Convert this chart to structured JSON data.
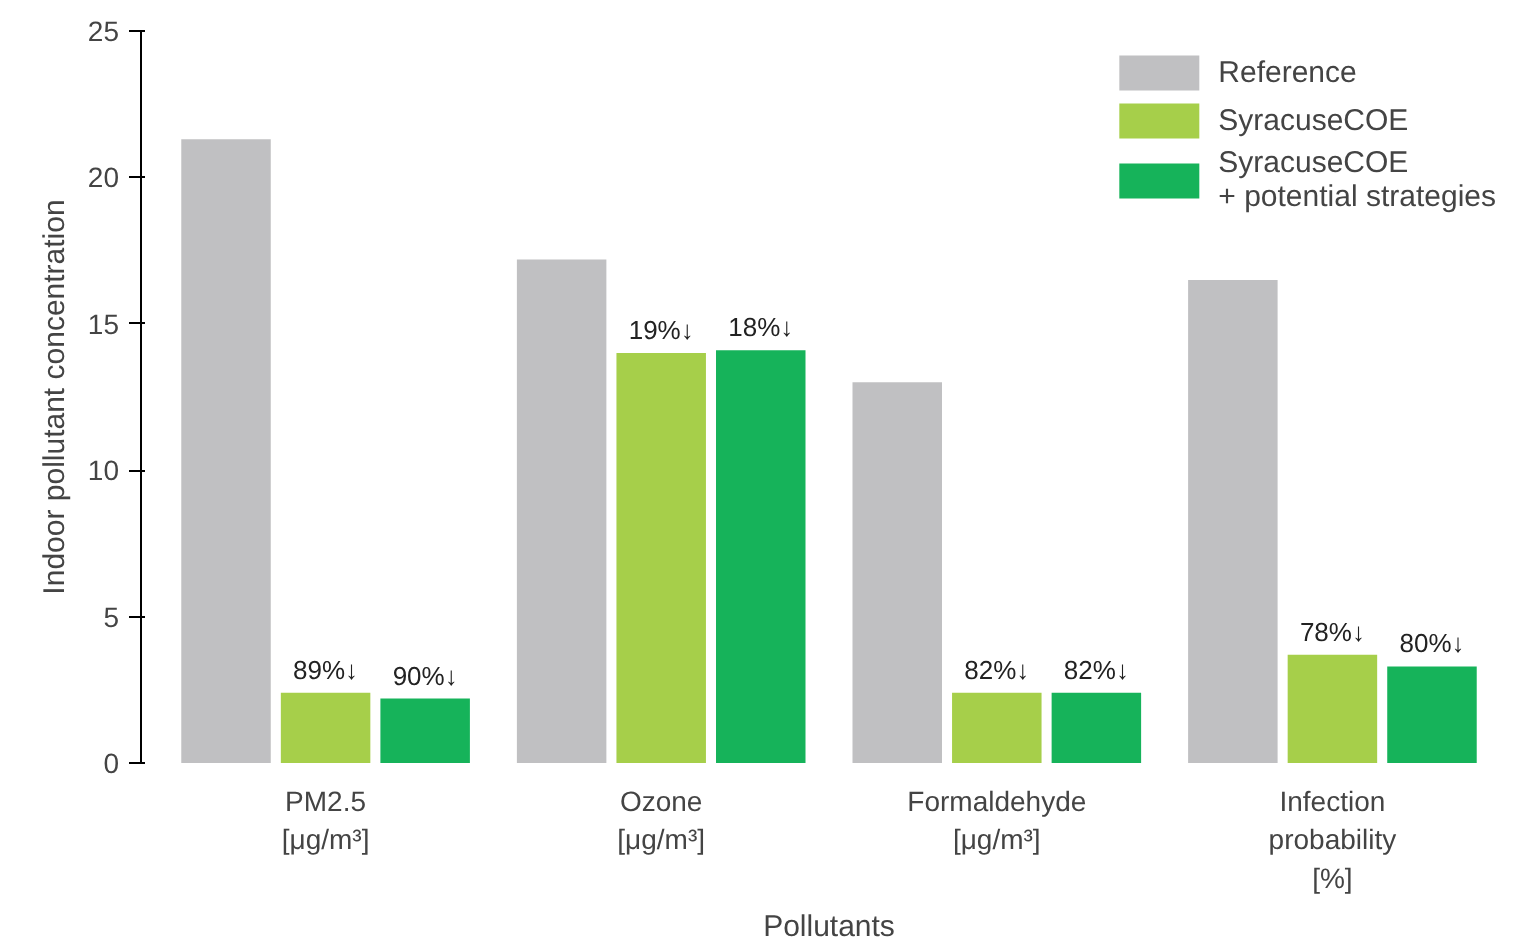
{
  "chart_data": {
    "type": "bar",
    "xlabel": "Pollutants",
    "ylabel": "Indoor pollutant concentration",
    "categories": [
      "PM2.5\n[μg/m³]",
      "Ozone\n[μg/m³]",
      "Formaldehyde\n[μg/m³]",
      "Infection\nprobability\n[%]"
    ],
    "ylim": [
      0,
      25
    ],
    "yticks": [
      0,
      5,
      10,
      15,
      20,
      25
    ],
    "grid": false,
    "legend": "top right",
    "series": [
      {
        "name": "Reference",
        "color": "#c0c0c2",
        "values": [
          21.3,
          17.2,
          13.0,
          16.5
        ]
      },
      {
        "name": "SyracuseCOE",
        "color": "#a6cf4a",
        "values": [
          2.4,
          14.0,
          2.4,
          3.7
        ]
      },
      {
        "name": "SyracuseCOE\n+ potential strategies",
        "color": "#16b35a",
        "values": [
          2.2,
          14.1,
          2.4,
          3.3
        ]
      }
    ],
    "annotations": [
      "89%↓",
      "90%↓",
      "19%↓",
      "18%↓",
      "82%↓",
      "82%↓",
      "78%↓",
      "80%↓"
    ]
  }
}
